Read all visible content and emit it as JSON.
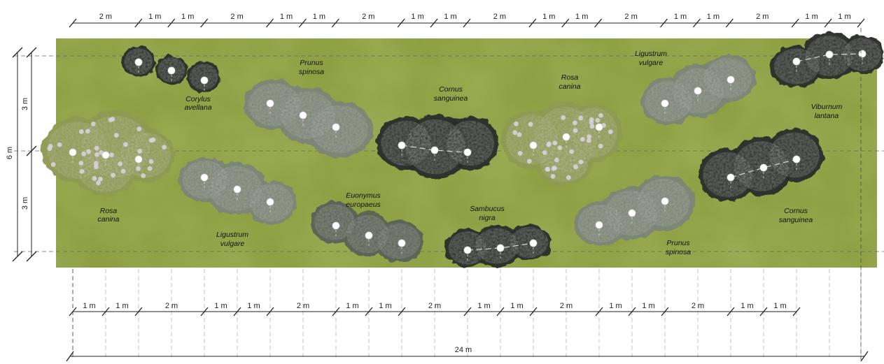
{
  "plan": {
    "top_dimensions": [
      "2 m",
      "1 m",
      "1 m",
      "2 m",
      "1 m",
      "1 m",
      "2 m",
      "1 m",
      "1 m",
      "2 m",
      "1 m",
      "1 m",
      "2 m",
      "1 m",
      "1 m",
      "2 m",
      "1 m",
      "1 m"
    ],
    "bottom_dimensions": [
      "1 m",
      "1 m",
      "2 m",
      "1 m",
      "1 m",
      "2 m",
      "1 m",
      "1 m",
      "2 m",
      "1 m",
      "1 m",
      "2 m",
      "1 m",
      "1 m",
      "2 m",
      "1 m",
      "1 m"
    ],
    "total_length": "24 m",
    "width_total": "6 m",
    "width_parts": [
      "3 m",
      "3 m"
    ]
  },
  "plants": [
    {
      "name_line1": "Rosa",
      "name_line2": "canina",
      "tone": "rose"
    },
    {
      "name_line1": "Corylus",
      "name_line2": "avellana",
      "tone": "dark"
    },
    {
      "name_line1": "Prunus",
      "name_line2": "spinosa",
      "tone": "grey"
    },
    {
      "name_line1": "Ligustrum",
      "name_line2": "vulgare",
      "tone": "grey"
    },
    {
      "name_line1": "Euonymus",
      "name_line2": "europaeus",
      "tone": "greyDark"
    },
    {
      "name_line1": "Cornus",
      "name_line2": "sanguinea",
      "tone": "dark"
    },
    {
      "name_line1": "Sambucus",
      "name_line2": "nigra",
      "tone": "dark"
    },
    {
      "name_line1": "Rosa",
      "name_line2": "canina",
      "tone": "rose"
    },
    {
      "name_line1": "Prunus",
      "name_line2": "spinosa",
      "tone": "grey"
    },
    {
      "name_line1": "Ligustrum",
      "name_line2": "vulgare",
      "tone": "grey"
    },
    {
      "name_line1": "Cornus",
      "name_line2": "sanguinea",
      "tone": "dark"
    },
    {
      "name_line1": "Viburnum",
      "name_line2": "lantana",
      "tone": "dark"
    }
  ],
  "colors": {
    "grass": "#8a9a3c",
    "grass_light": "#9fae4a",
    "grass_dark": "#6f8030",
    "rose": "#8f9a52",
    "rose_flower": "#d7d3dc",
    "dark": "#2b2f2a",
    "grey": "#7d8577",
    "greyDark": "#5b6357"
  }
}
